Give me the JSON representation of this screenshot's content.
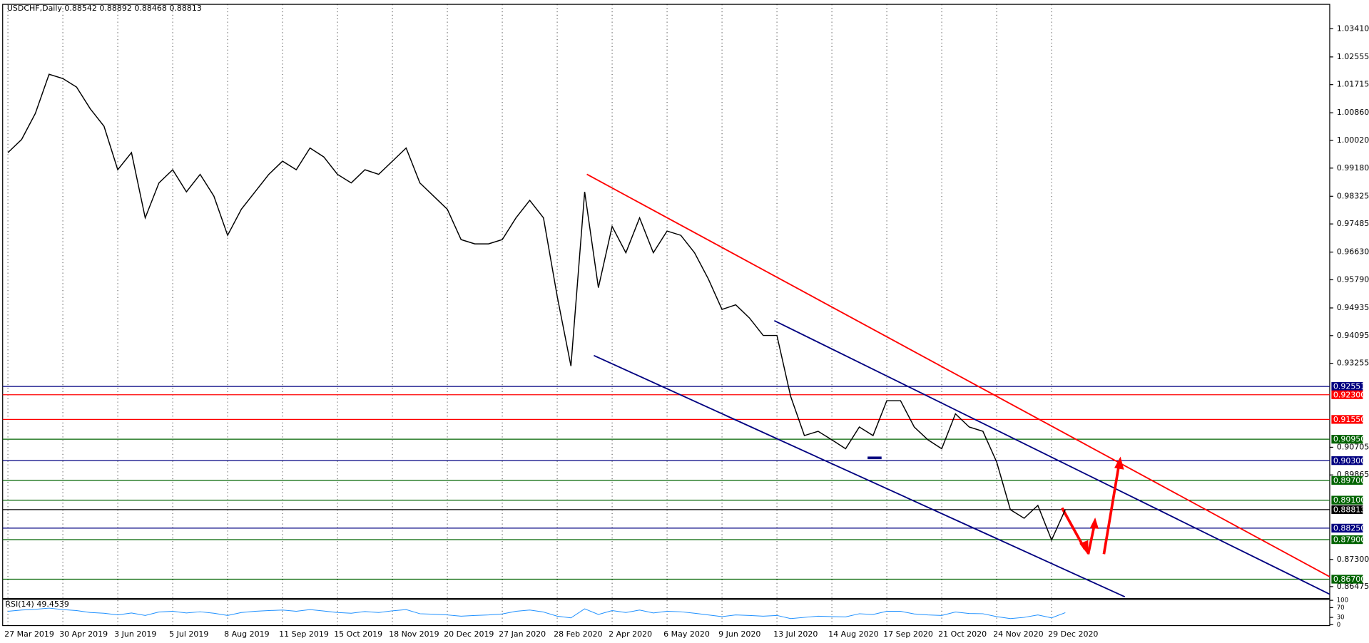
{
  "chart_data": {
    "type": "line",
    "title": "USDCHF,Daily 0.88542 0.88892 0.88468 0.88813",
    "color": "#000000",
    "grid": true,
    "categories": [
      "27 Mar 2019",
      null,
      null,
      null,
      "30 Apr 2019",
      null,
      null,
      null,
      "3 Jun 2019",
      null,
      null,
      null,
      "5 Jul 2019",
      null,
      null,
      null,
      "8 Aug 2019",
      null,
      null,
      null,
      "11 Sep 2019",
      null,
      null,
      null,
      "15 Oct 2019",
      null,
      null,
      null,
      "18 Nov 2019",
      null,
      null,
      null,
      "20 Dec 2019",
      null,
      null,
      null,
      "27 Jan 2020",
      null,
      null,
      null,
      "28 Feb 2020",
      null,
      null,
      null,
      "2 Apr 2020",
      null,
      null,
      null,
      "6 May 2020",
      null,
      null,
      null,
      "9 Jun 2020",
      null,
      null,
      null,
      "13 Jul 2020",
      null,
      null,
      null,
      "14 Aug 2020",
      null,
      null,
      null,
      "17 Sep 2020",
      null,
      null,
      null,
      "21 Oct 2020",
      null,
      null,
      null,
      "24 Nov 2020",
      null,
      null,
      null,
      "29 Dec 2020",
      null,
      null,
      null,
      null,
      null,
      null,
      null,
      null,
      null,
      null,
      null,
      null,
      null,
      null,
      null,
      null,
      null,
      null,
      null,
      null
    ],
    "values": [
      0.9965,
      1.0005,
      1.0084,
      1.0203,
      1.019,
      1.0164,
      1.0098,
      1.0045,
      0.9913,
      0.9965,
      0.9767,
      0.9873,
      0.9913,
      0.9846,
      0.9899,
      0.9833,
      0.9714,
      0.9793,
      0.9846,
      0.9899,
      0.9939,
      0.9913,
      0.9979,
      0.9952,
      0.9899,
      0.9873,
      0.9913,
      0.9899,
      0.9939,
      0.9979,
      0.9873,
      0.9833,
      0.9793,
      0.9701,
      0.9688,
      0.9688,
      0.9701,
      0.9767,
      0.982,
      0.9767,
      0.9529,
      0.9317,
      0.9846,
      0.9555,
      0.9741,
      0.9661,
      0.9767,
      0.9661,
      0.9727,
      0.9714,
      0.9661,
      0.9582,
      0.9489,
      0.9503,
      0.9463,
      0.941,
      0.941,
      0.9225,
      0.9106,
      0.9119,
      0.9093,
      0.9066,
      0.9132,
      0.9106,
      0.9212,
      0.9212,
      0.9132,
      0.9093,
      0.9066,
      0.9172,
      0.9132,
      0.9119,
      0.9026,
      0.8881,
      0.8855,
      0.8894,
      0.8789,
      0.88813,
      null,
      null,
      null,
      null,
      null,
      null,
      null,
      null,
      null,
      null,
      null,
      null,
      null,
      null,
      null,
      null,
      null,
      null,
      null
    ],
    "ylim": [
      1.04151,
      0.86112
    ],
    "yticks": [
      {
        "value": 1.0341,
        "label": "1.03410"
      },
      1.02555,
      1.01715,
      {
        "value": 1.0086,
        "label": "1.00860"
      },
      {
        "value": 1.0002,
        "label": "1.00020"
      },
      {
        "value": 0.9918,
        "label": "0.99180"
      },
      0.98325,
      0.97485,
      {
        "value": 0.9663,
        "label": "0.96630"
      },
      {
        "value": 0.9579,
        "label": "0.95790"
      },
      0.94935,
      0.94095,
      0.93255,
      0.90705,
      0.89865,
      {
        "value": 0.873,
        "label": "0.87300"
      },
      0.86475
    ],
    "levels": [
      {
        "value": 0.92551,
        "label": "0.92551",
        "color": "#000080"
      },
      {
        "value": 0.923,
        "label": "0.92300",
        "color": "#ff0000"
      },
      {
        "value": 0.9155,
        "label": "0.91550",
        "color": "#ff0000"
      },
      {
        "value": 0.9095,
        "label": "0.90950",
        "color": "#006400"
      },
      {
        "value": 0.903,
        "label": "0.90300",
        "color": "#000080"
      },
      {
        "value": 0.897,
        "label": "0.89700",
        "color": "#006400"
      },
      {
        "value": 0.891,
        "label": "0.89100",
        "color": "#006400"
      },
      {
        "value": 0.88813,
        "label": "0.88813",
        "color": "#000000"
      },
      {
        "value": 0.8825,
        "label": "0.88250",
        "color": "#000080"
      },
      {
        "value": 0.879,
        "label": "0.87900",
        "color": "#006400"
      },
      {
        "value": 0.867,
        "label": "0.86700",
        "color": "#006400"
      }
    ],
    "rsi": {
      "label": "RSI(14) 49.4539",
      "color": "#1e90ff",
      "ylim": [
        0,
        100
      ],
      "yticks": [
        100,
        70,
        30,
        0
      ],
      "values": [
        55,
        60,
        63,
        68,
        62,
        58,
        50,
        47,
        40,
        48,
        38,
        52,
        55,
        48,
        53,
        47,
        38,
        50,
        55,
        58,
        60,
        55,
        62,
        56,
        50,
        47,
        54,
        50,
        57,
        62,
        45,
        43,
        40,
        35,
        38,
        40,
        44,
        55,
        60,
        52,
        35,
        28,
        65,
        42,
        58,
        50,
        60,
        48,
        55,
        53,
        47,
        40,
        33,
        40,
        38,
        35,
        38,
        25,
        30,
        35,
        33,
        32,
        45,
        42,
        55,
        55,
        44,
        40,
        38,
        52,
        46,
        45,
        33,
        25,
        30,
        40,
        28,
        49.4539
      ]
    }
  }
}
